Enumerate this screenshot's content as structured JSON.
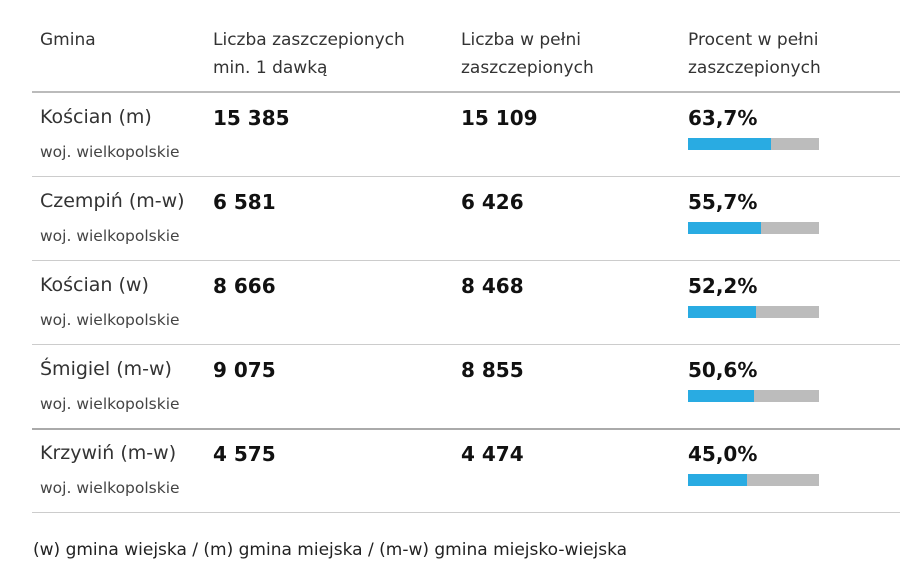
{
  "table": {
    "header": [
      "Gmina",
      "Liczba zaszczepionych min. 1 dawką",
      "Liczba w pełni zaszczepionych",
      "Procent w pełni zaszczepionych"
    ],
    "rows": [
      {
        "gmina": "Kościan (m)",
        "region": "woj. wielkopolskie",
        "first_dose": "15 385",
        "full": "15 109",
        "percent": {
          "value": 63.7,
          "label": "63,7%"
        }
      },
      {
        "gmina": "Czempiń (m-w)",
        "region": "woj. wielkopolskie",
        "first_dose": "6 581",
        "full": "6 426",
        "percent": {
          "value": 55.7,
          "label": "55,7%"
        }
      },
      {
        "gmina": "Kościan (w)",
        "region": "woj. wielkopolskie",
        "first_dose": "8 666",
        "full": "8 468",
        "percent": {
          "value": 52.2,
          "label": "52,2%"
        }
      },
      {
        "gmina": "Śmigiel (m-w)",
        "region": "woj. wielkopolskie",
        "first_dose": "9 075",
        "full": "8 855",
        "percent": {
          "value": 50.6,
          "label": "50,6%"
        }
      },
      {
        "gmina": "Krzywiń (m-w)",
        "region": "woj. wielkopolskie",
        "first_dose": "4 575",
        "full": "4 474",
        "percent": {
          "value": 45.0,
          "label": "45,0%"
        }
      }
    ],
    "footnote": "(w) gmina wiejska / (m) gmina miejska / (m-w) gmina miejsko-wiejska"
  }
}
